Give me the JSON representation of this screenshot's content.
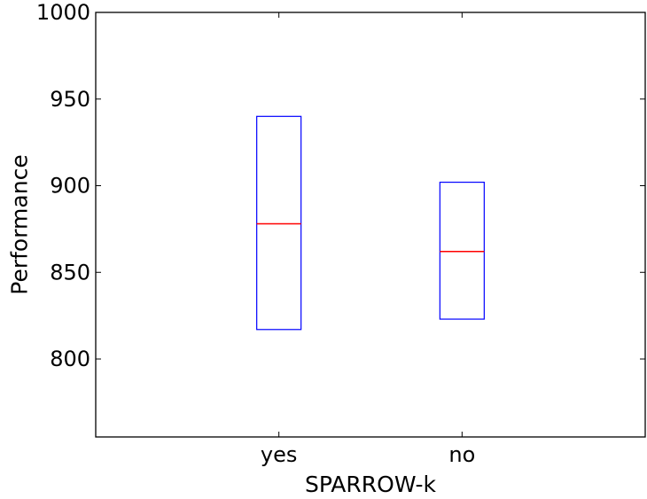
{
  "chart_data": {
    "type": "box",
    "title": "",
    "xlabel": "SPARROW-k",
    "ylabel": "Performance",
    "ylim": [
      755,
      1000
    ],
    "yticks": [
      800,
      850,
      900,
      950,
      1000
    ],
    "grid": false,
    "legend": "none",
    "categories": [
      "yes",
      "no"
    ],
    "boxes": [
      {
        "category": "yes",
        "q1": 817,
        "median": 878,
        "q3": 940
      },
      {
        "category": "no",
        "q1": 823,
        "median": 862,
        "q3": 902
      }
    ],
    "colors": {
      "box": "#0000ff",
      "median": "#ff0000",
      "axes": "#000000"
    }
  }
}
